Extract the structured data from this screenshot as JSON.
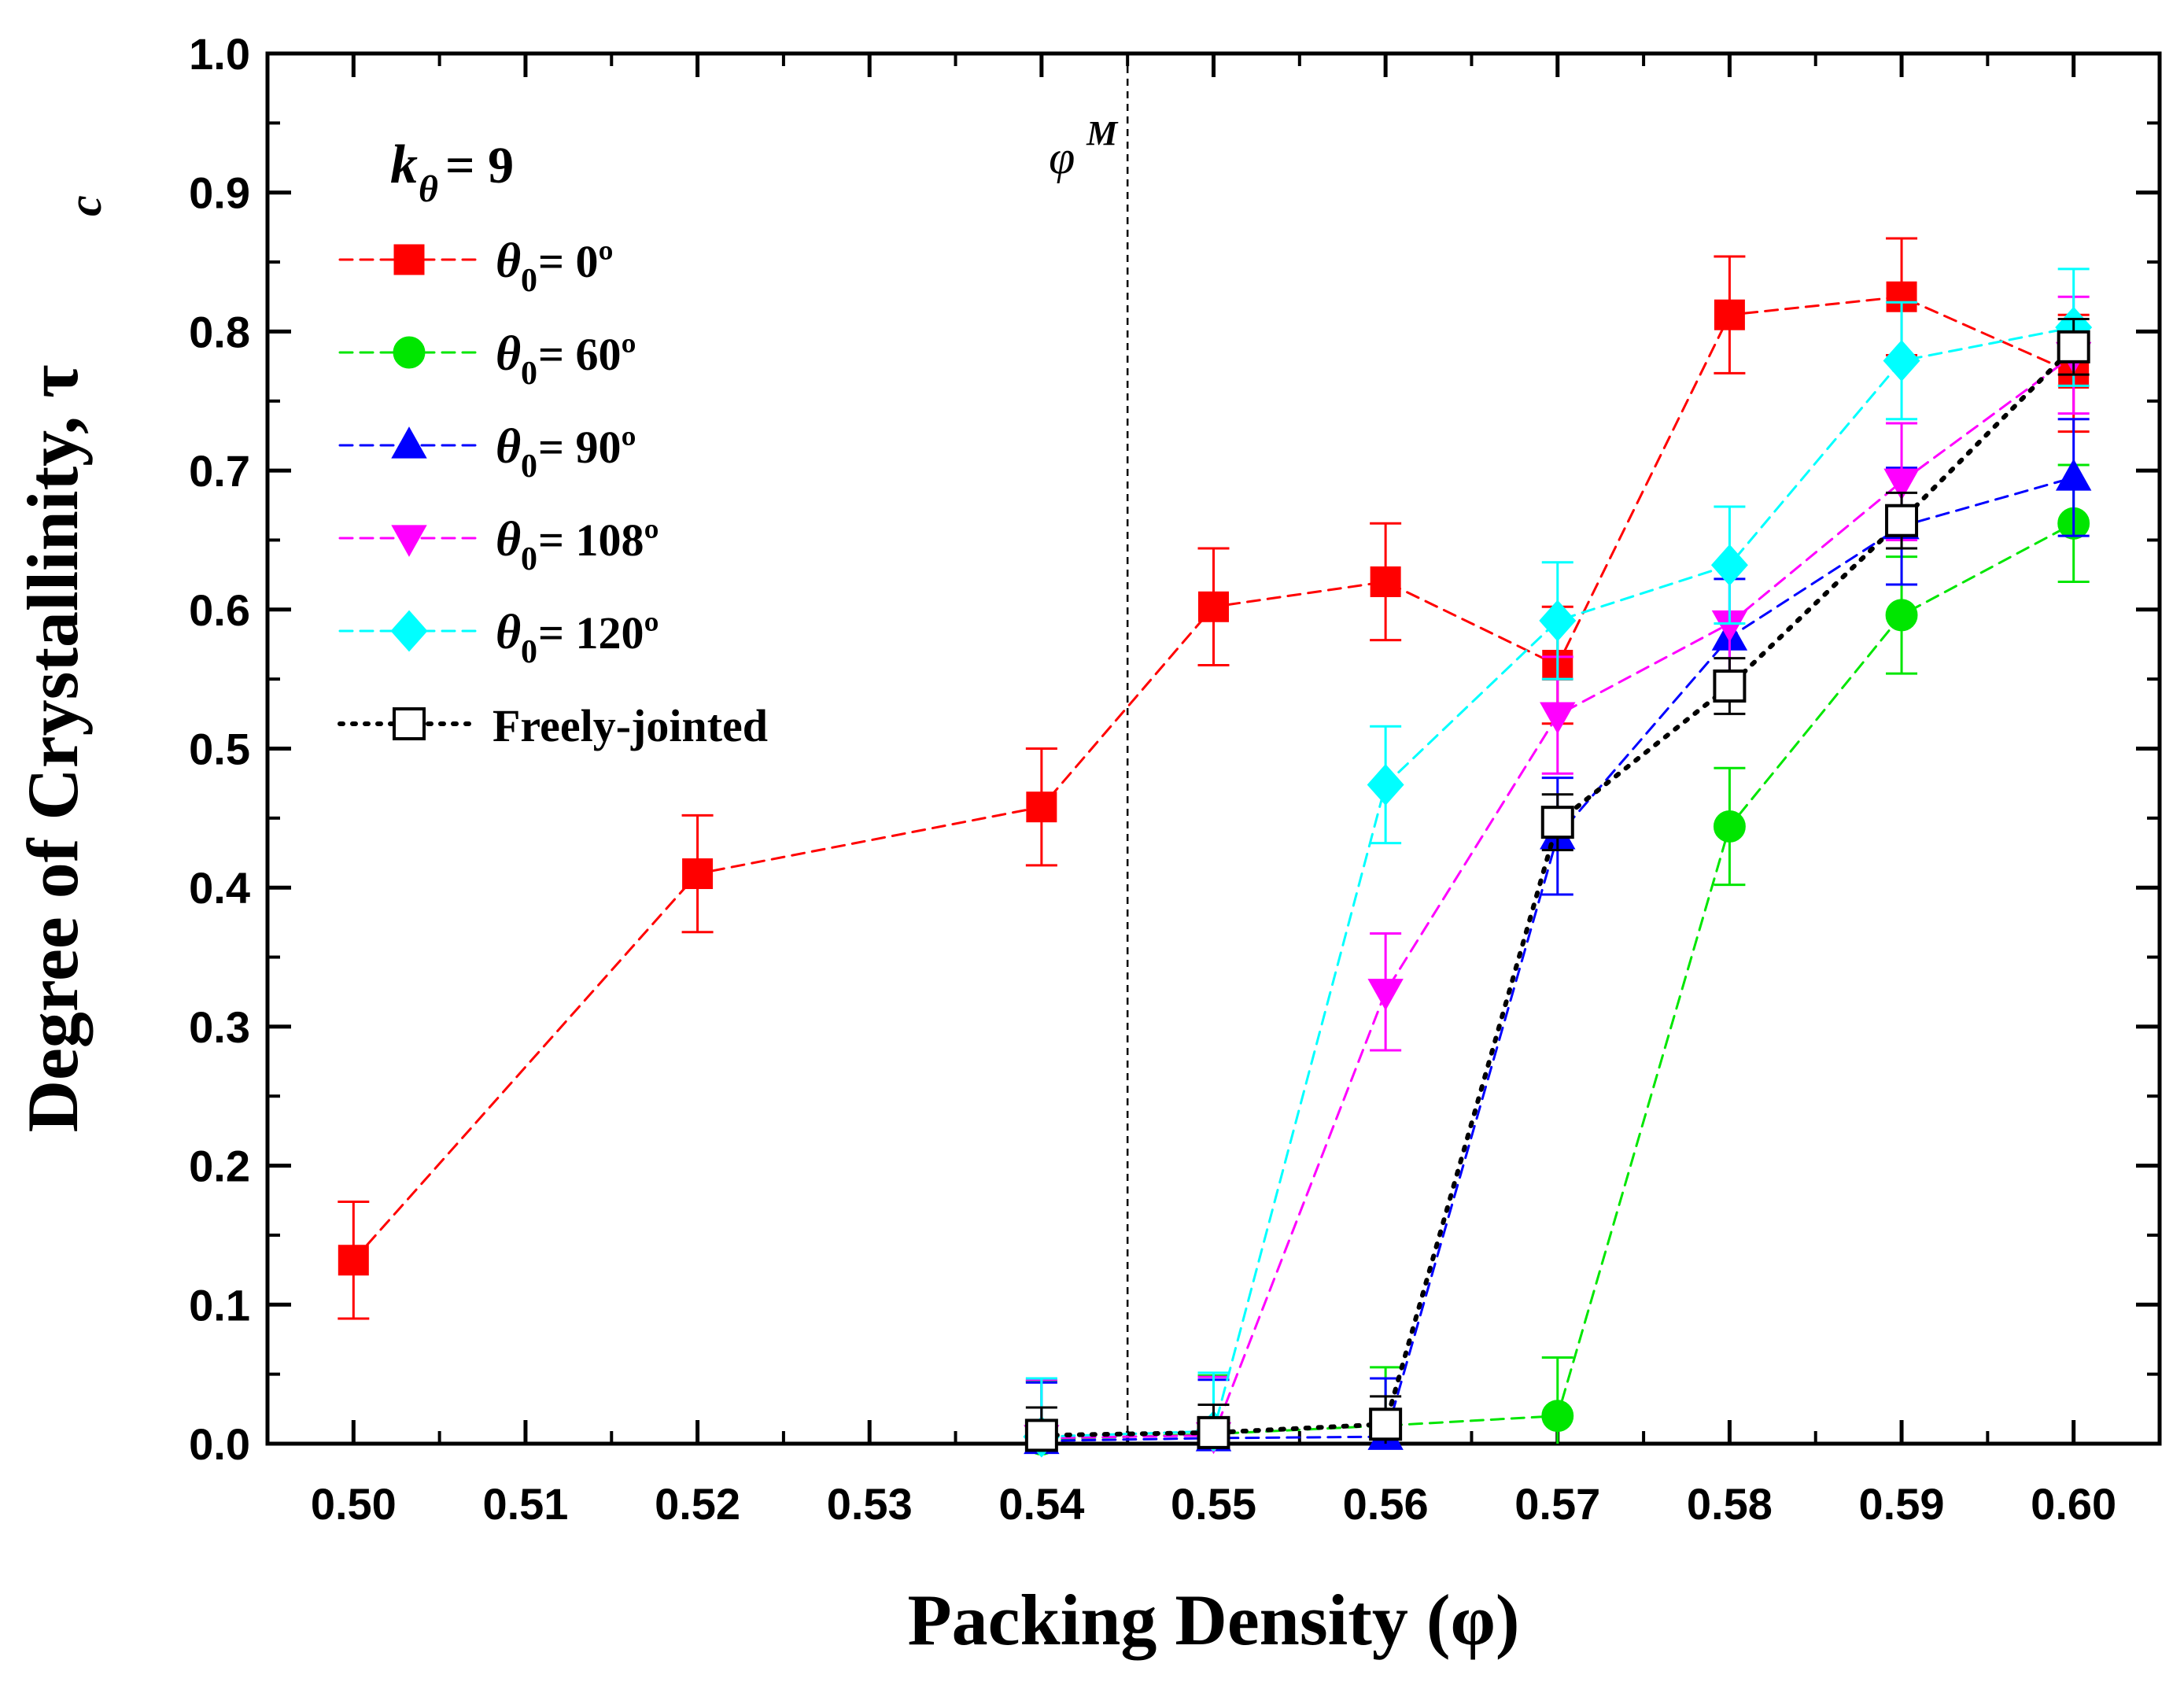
{
  "chart_data": {
    "type": "line",
    "xlabel": "Packing Density (φ)",
    "ylabel": "Degree of Crystallinity, τ",
    "ylabel_sub": "c",
    "xlim": [
      0.495,
      0.605
    ],
    "ylim": [
      0.0,
      1.0
    ],
    "x_ticks": [
      0.5,
      0.51,
      0.52,
      0.53,
      0.54,
      0.55,
      0.56,
      0.57,
      0.58,
      0.59,
      0.6
    ],
    "x_tick_labels": [
      "0.50",
      "0.51",
      "0.52",
      "0.53",
      "0.54",
      "0.55",
      "0.56",
      "0.57",
      "0.58",
      "0.59",
      "0.60"
    ],
    "y_ticks": [
      0.0,
      0.1,
      0.2,
      0.3,
      0.4,
      0.5,
      0.6,
      0.7,
      0.8,
      0.9,
      1.0
    ],
    "y_tick_labels": [
      "0.0",
      "0.1",
      "0.2",
      "0.3",
      "0.4",
      "0.5",
      "0.6",
      "0.7",
      "0.8",
      "0.9",
      "1.0"
    ],
    "legend_param": {
      "k": "k",
      "sub": "θ",
      "value": "= 9"
    },
    "vline": {
      "x": 0.545,
      "label": "φ",
      "label_sup": "M"
    },
    "legend_position": "top-left",
    "series": [
      {
        "name": "θ0 = 0º",
        "legend_theta": "θ",
        "legend_sub": "0",
        "legend_rest": " = 0º",
        "color": "#ff0000",
        "marker": "square",
        "filled": true,
        "linestyle": "dashed",
        "x": [
          0.5,
          0.52,
          0.54,
          0.55,
          0.56,
          0.57,
          0.58,
          0.59,
          0.6
        ],
        "y": [
          0.132,
          0.41,
          0.458,
          0.602,
          0.62,
          0.56,
          0.812,
          0.825,
          0.77
        ],
        "err": [
          0.042,
          0.042,
          0.042,
          0.042,
          0.042,
          0.042,
          0.042,
          0.042,
          0.042
        ]
      },
      {
        "name": "θ0 = 60º",
        "legend_theta": "θ",
        "legend_sub": "0",
        "legend_rest": " = 60º",
        "color": "#00e600",
        "marker": "circle",
        "filled": true,
        "linestyle": "dashed",
        "x": [
          0.54,
          0.55,
          0.56,
          0.57,
          0.58,
          0.59,
          0.6
        ],
        "y": [
          0.003,
          0.007,
          0.013,
          0.02,
          0.444,
          0.596,
          0.662
        ],
        "err": [
          0.042,
          0.042,
          0.042,
          0.042,
          0.042,
          0.042,
          0.042
        ]
      },
      {
        "name": "θ0 = 90º",
        "legend_theta": "θ",
        "legend_sub": "0",
        "legend_rest": " = 90º",
        "color": "#0000ff",
        "marker": "triangle-up",
        "filled": true,
        "linestyle": "dashed",
        "x": [
          0.54,
          0.55,
          0.56,
          0.57,
          0.58,
          0.59,
          0.6
        ],
        "y": [
          0.002,
          0.004,
          0.005,
          0.437,
          0.58,
          0.66,
          0.695
        ],
        "err": [
          0.042,
          0.042,
          0.042,
          0.042,
          0.042,
          0.042,
          0.042
        ]
      },
      {
        "name": "θ0 = 108º",
        "legend_theta": "θ",
        "legend_sub": "0",
        "legend_rest": " = 108º",
        "color": "#ff00ff",
        "marker": "triangle-down",
        "filled": true,
        "linestyle": "dashed",
        "x": [
          0.54,
          0.55,
          0.56,
          0.57,
          0.58,
          0.59,
          0.6
        ],
        "y": [
          0.004,
          0.006,
          0.325,
          0.524,
          0.59,
          0.692,
          0.783
        ],
        "err": [
          0.042,
          0.042,
          0.042,
          0.042,
          0.042,
          0.042,
          0.042
        ]
      },
      {
        "name": "θ0 = 120º",
        "legend_theta": "θ",
        "legend_sub": "0",
        "legend_rest": " = 120º",
        "color": "#00ffff",
        "marker": "diamond",
        "filled": true,
        "linestyle": "dashed",
        "x": [
          0.54,
          0.55,
          0.56,
          0.57,
          0.58,
          0.59,
          0.6
        ],
        "y": [
          0.005,
          0.009,
          0.474,
          0.592,
          0.632,
          0.779,
          0.803
        ],
        "err": [
          0.042,
          0.042,
          0.042,
          0.042,
          0.042,
          0.042,
          0.042
        ]
      },
      {
        "name": "Freely-jointed",
        "legend_theta": "",
        "legend_sub": "",
        "legend_rest": "Freely-jointed",
        "color": "#000000",
        "marker": "square",
        "filled": false,
        "linestyle": "dotted",
        "x": [
          0.54,
          0.55,
          0.56,
          0.57,
          0.58,
          0.59,
          0.6
        ],
        "y": [
          0.006,
          0.008,
          0.014,
          0.447,
          0.545,
          0.664,
          0.789
        ],
        "err": [
          0.02,
          0.02,
          0.02,
          0.02,
          0.02,
          0.02,
          0.02
        ]
      }
    ]
  }
}
